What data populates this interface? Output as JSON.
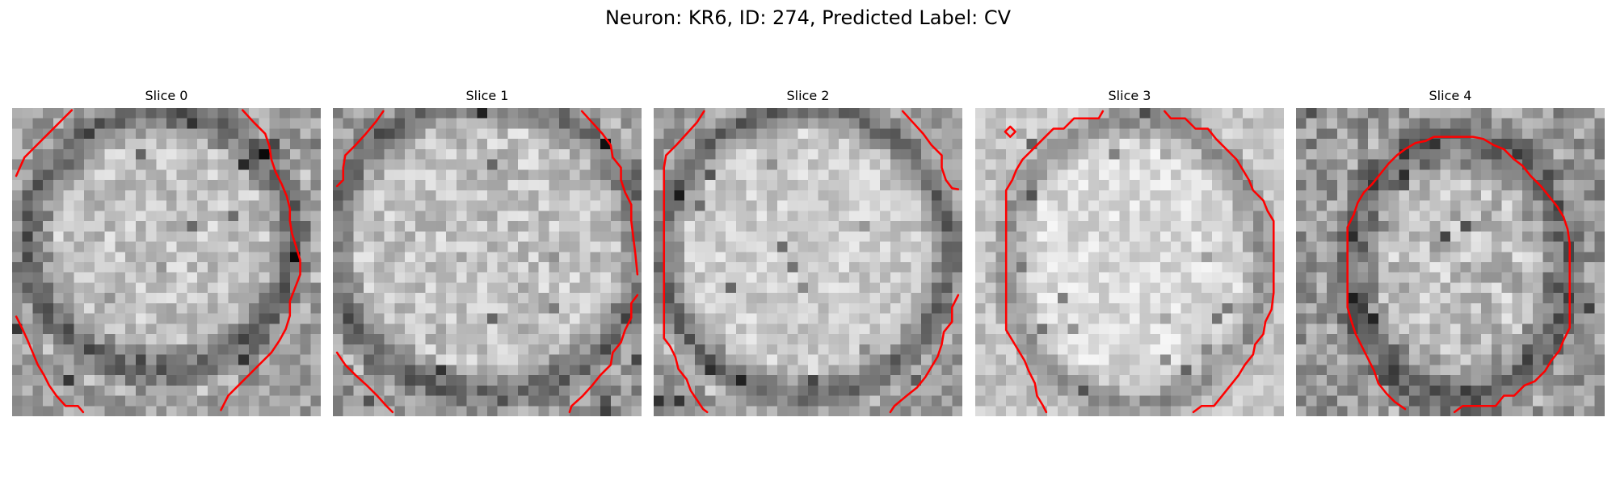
{
  "figure": {
    "title": "Neuron: KR6, ID: 274, Predicted Label: CV"
  },
  "panels": [
    {
      "title": "Slice 0"
    },
    {
      "title": "Slice 1"
    },
    {
      "title": "Slice 2"
    },
    {
      "title": "Slice 3"
    },
    {
      "title": "Slice 4"
    }
  ],
  "colors": {
    "contour": "#ff0000",
    "colormap": "grayscale"
  }
}
